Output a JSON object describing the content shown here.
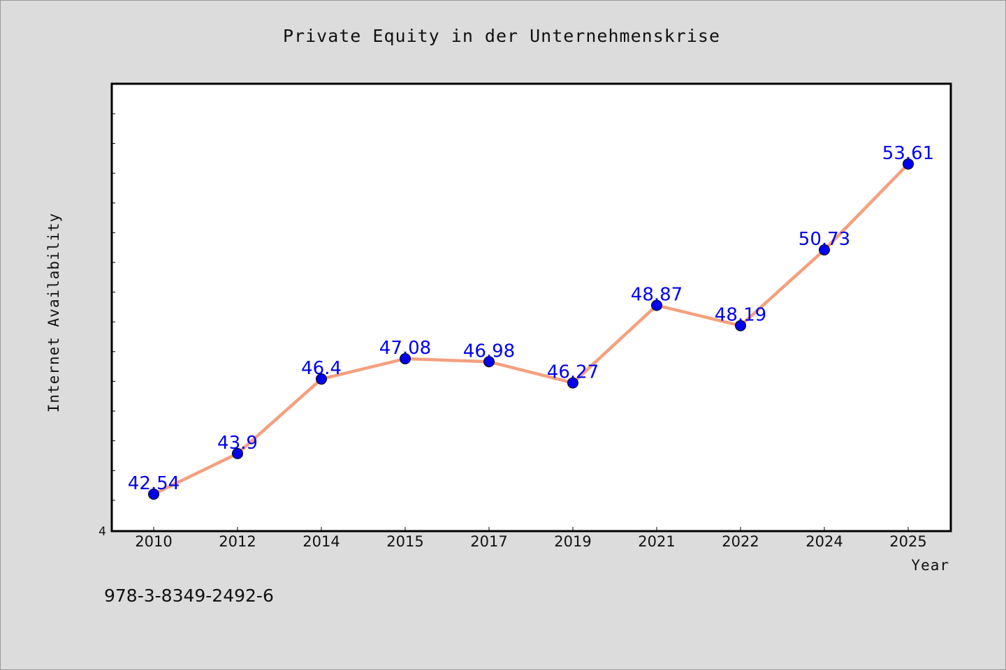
{
  "chart_data": {
    "type": "line",
    "title": "Private Equity in der Unternehmenskrise",
    "xlabel": "Year",
    "ylabel": "Internet Availability",
    "categories": [
      "2010",
      "2012",
      "2014",
      "2015",
      "2017",
      "2019",
      "2021",
      "2022",
      "2024",
      "2025"
    ],
    "series": [
      {
        "values": [
          42.54,
          43.9,
          46.4,
          47.08,
          46.98,
          46.27,
          48.87,
          48.19,
          50.73,
          53.61
        ],
        "labels": [
          "42.54",
          "43.9",
          "46.4",
          "47.08",
          "46.98",
          "46.27",
          "48.87",
          "48.19",
          "50.73",
          "53.61"
        ]
      }
    ],
    "ylim": [
      41.3,
      56.3
    ],
    "y_tick_label": "4",
    "grid": false,
    "colors": {
      "line": "#f4a07e",
      "marker": "#0000ee",
      "data_label": "#0000ee",
      "plot_bg": "#ffffff",
      "page_bg": "#dcdcdc"
    }
  },
  "footer": {
    "isbn": "978-3-8349-2492-6"
  }
}
